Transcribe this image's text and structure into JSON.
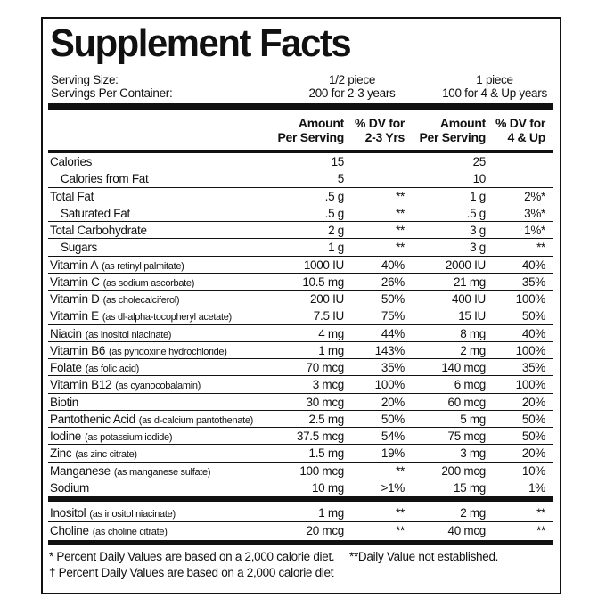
{
  "header": {
    "title": "Supplement Facts",
    "serving_size_label": "Serving Size:",
    "servings_per_container_label": "Servings Per Container:",
    "serving_size_1": "1/2 piece",
    "servings_1": "200 for 2-3 years",
    "serving_size_2": "1 piece",
    "servings_2": "100 for 4 & Up years"
  },
  "columns": [
    [
      "Amount",
      "Per Serving"
    ],
    [
      "% DV for",
      "2-3 Yrs"
    ],
    [
      "Amount",
      "Per Serving"
    ],
    [
      "% DV for",
      "4 & Up"
    ]
  ],
  "table": {
    "rows": [
      [
        "Calories",
        null,
        "15",
        null,
        "25",
        null
      ],
      [
        "Calories from Fat",
        null,
        "5",
        null,
        "10",
        null
      ],
      [
        "Total Fat",
        null,
        ".5 g",
        "**",
        "1 g",
        "2%*"
      ],
      [
        "Saturated Fat",
        null,
        ".5 g",
        "**",
        ".5 g",
        "3%*"
      ],
      [
        "Total Carbohydrate",
        null,
        "2 g",
        "**",
        "3 g",
        "1%*"
      ],
      [
        "Sugars",
        null,
        "1 g",
        "**",
        "3 g",
        "**"
      ],
      [
        "Vitamin A",
        "(as retinyl palmitate)",
        "1000 IU",
        "40%",
        "2000 IU",
        "40%"
      ],
      [
        "Vitamin C",
        "(as sodium ascorbate)",
        "10.5 mg",
        "26%",
        "21 mg",
        "35%"
      ],
      [
        "Vitamin D",
        "(as cholecalciferol)",
        "200 IU",
        "50%",
        "400 IU",
        "100%"
      ],
      [
        "Vitamin E",
        "(as dl-alpha-tocopheryl acetate)",
        "7.5 IU",
        "75%",
        "15 IU",
        "50%"
      ],
      [
        "Niacin",
        "(as inositol niacinate)",
        "4 mg",
        "44%",
        "8 mg",
        "40%"
      ],
      [
        "Vitamin B6",
        "(as pyridoxine hydrochloride)",
        "1 mg",
        "143%",
        "2 mg",
        "100%"
      ],
      [
        "Folate",
        "(as folic acid)",
        "70 mcg",
        "35%",
        "140 mcg",
        "35%"
      ],
      [
        "Vitamin B12",
        "(as cyanocobalamin)",
        "3 mcg",
        "100%",
        "6 mcg",
        "100%"
      ],
      [
        "Biotin",
        null,
        "30 mcg",
        "20%",
        "60 mcg",
        "20%"
      ],
      [
        "Pantothenic Acid",
        "(as d-calcium pantothenate)",
        "2.5 mg",
        "50%",
        "5 mg",
        "50%"
      ],
      [
        "Iodine",
        "(as potassium iodide)",
        "37.5 mcg",
        "54%",
        "75 mcg",
        "50%"
      ],
      [
        "Zinc",
        "(as zinc citrate)",
        "1.5 mg",
        "19%",
        "3 mg",
        "20%"
      ],
      [
        "Manganese",
        "(as manganese sulfate)",
        "100 mcg",
        "**",
        "200 mcg",
        "10%"
      ],
      [
        "Sodium",
        null,
        "10 mg",
        ">1%",
        "15 mg",
        "1%"
      ]
    ],
    "other_rows": [
      [
        "Inositol",
        "(as inositol niacinate)",
        "1 mg",
        "**",
        "2 mg",
        "**"
      ],
      [
        "Choline",
        "(as choline citrate)",
        "20 mcg",
        "**",
        "40 mcg",
        "**"
      ]
    ]
  },
  "footnotes": [
    "* Percent Daily Values are based on a 2,000 calorie diet.",
    "**Daily Value not established.",
    "† Percent Daily Values are based on a 2,000 calorie diet"
  ]
}
